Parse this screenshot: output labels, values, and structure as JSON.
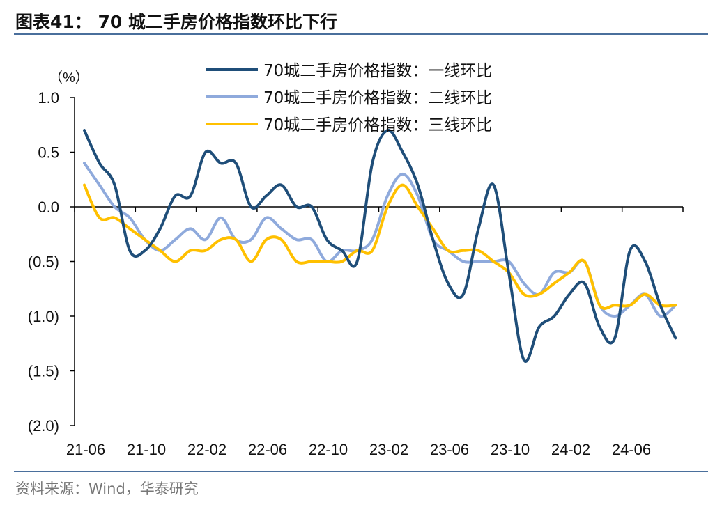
{
  "title": "图表41：  70 城二手房价格指数环比下行",
  "source": "资料来源：Wind，华泰研究",
  "chart_data": {
    "type": "line",
    "title": "",
    "ylabel": "（%）",
    "xlabel": "",
    "ylim": [
      -2.0,
      1.0
    ],
    "yticks": [
      1.0,
      0.5,
      0.0,
      -0.5,
      -1.0,
      -1.5,
      -2.0
    ],
    "ytick_labels": [
      "1.0",
      "0.5",
      "0.0",
      "(0.5)",
      "(1.0)",
      "(1.5)",
      "(2.0)"
    ],
    "xtick_labels": [
      "21-06",
      "21-10",
      "22-02",
      "22-06",
      "22-10",
      "23-02",
      "23-06",
      "23-10",
      "24-02",
      "24-06"
    ],
    "x": [
      "21-06",
      "21-07",
      "21-08",
      "21-09",
      "21-10",
      "21-11",
      "21-12",
      "22-01",
      "22-02",
      "22-03",
      "22-04",
      "22-05",
      "22-06",
      "22-07",
      "22-08",
      "22-09",
      "22-10",
      "22-11",
      "22-12",
      "23-01",
      "23-02",
      "23-03",
      "23-04",
      "23-05",
      "23-06",
      "23-07",
      "23-08",
      "23-09",
      "23-10",
      "23-11",
      "23-12",
      "24-01",
      "24-02",
      "24-03",
      "24-04",
      "24-05",
      "24-06",
      "24-07",
      "24-08",
      "24-09"
    ],
    "grid": false,
    "legend_position": "top-center",
    "series": [
      {
        "name": "70城二手房价格指数：一线环比",
        "color": "#1f4e79",
        "values": [
          0.7,
          0.4,
          0.2,
          -0.4,
          -0.4,
          -0.2,
          0.1,
          0.1,
          0.5,
          0.4,
          0.4,
          0.0,
          0.1,
          0.2,
          0.0,
          0.0,
          -0.3,
          -0.4,
          -0.5,
          0.4,
          0.7,
          0.5,
          0.2,
          -0.3,
          -0.7,
          -0.8,
          -0.2,
          0.2,
          -0.6,
          -1.4,
          -1.1,
          -1.0,
          -0.8,
          -0.7,
          -1.1,
          -1.2,
          -0.4,
          -0.5,
          -0.9,
          -1.2
        ]
      },
      {
        "name": "70城二手房价格指数：二线环比",
        "color": "#8faadc",
        "values": [
          0.4,
          0.2,
          0.0,
          -0.1,
          -0.3,
          -0.4,
          -0.3,
          -0.2,
          -0.3,
          -0.1,
          -0.3,
          -0.3,
          -0.1,
          -0.2,
          -0.3,
          -0.3,
          -0.5,
          -0.4,
          -0.4,
          -0.3,
          0.1,
          0.3,
          0.1,
          -0.3,
          -0.4,
          -0.5,
          -0.5,
          -0.5,
          -0.5,
          -0.7,
          -0.8,
          -0.6,
          -0.6,
          -0.5,
          -0.9,
          -1.0,
          -0.9,
          -0.8,
          -1.0,
          -0.9
        ]
      },
      {
        "name": "70城二手房价格指数：三线环比",
        "color": "#ffc000",
        "values": [
          0.2,
          -0.1,
          -0.1,
          -0.2,
          -0.3,
          -0.4,
          -0.5,
          -0.4,
          -0.4,
          -0.3,
          -0.3,
          -0.5,
          -0.3,
          -0.3,
          -0.5,
          -0.5,
          -0.5,
          -0.5,
          -0.4,
          -0.4,
          0.0,
          0.2,
          0.0,
          -0.2,
          -0.4,
          -0.4,
          -0.4,
          -0.5,
          -0.6,
          -0.8,
          -0.8,
          -0.7,
          -0.6,
          -0.5,
          -0.9,
          -0.9,
          -0.9,
          -0.8,
          -0.9,
          -0.9
        ]
      }
    ]
  }
}
